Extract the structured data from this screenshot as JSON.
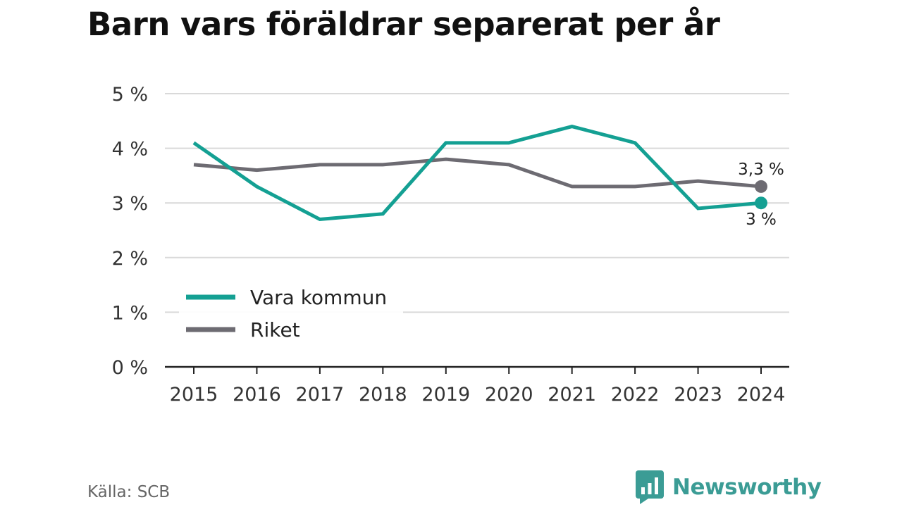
{
  "title": "Barn vars föräldrar separerat per år",
  "source": "Källa: SCB",
  "brand": {
    "name": "Newsworthy",
    "logo_icon": "bar-chart-speech-bubble-icon",
    "color": "#3b9c95"
  },
  "chart_data": {
    "type": "line",
    "x": [
      "2015",
      "2016",
      "2017",
      "2018",
      "2019",
      "2020",
      "2021",
      "2022",
      "2023",
      "2024"
    ],
    "y_ticks": [
      "0 %",
      "1 %",
      "2 %",
      "3 %",
      "4 %",
      "5 %"
    ],
    "ylim": [
      0,
      5
    ],
    "grid": true,
    "legend_position": "bottom-left",
    "series": [
      {
        "name": "Vara kommun",
        "color": "#14a093",
        "values": [
          4.1,
          3.3,
          2.7,
          2.8,
          4.1,
          4.1,
          4.4,
          4.1,
          2.9,
          3.0
        ],
        "end_label": "3 %"
      },
      {
        "name": "Riket",
        "color": "#6d6b72",
        "values": [
          3.7,
          3.6,
          3.7,
          3.7,
          3.8,
          3.7,
          3.3,
          3.3,
          3.4,
          3.3
        ],
        "end_label": "3,3 %"
      }
    ]
  }
}
